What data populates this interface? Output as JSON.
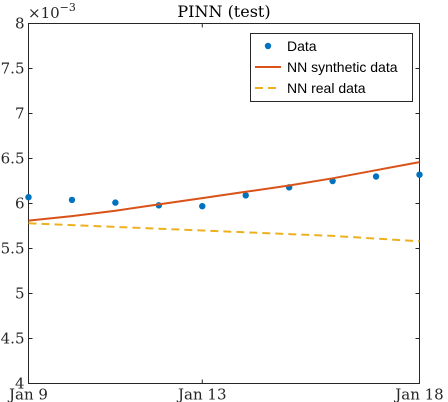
{
  "chart_data": {
    "type": "line",
    "title": "PINN (test)",
    "xlabel": "",
    "ylabel": "",
    "y_exponent_label": "×10",
    "y_exponent_power": "−3",
    "y_scale_factor": 0.001,
    "xlim": [
      0,
      9
    ],
    "ylim": [
      4.0,
      8.0
    ],
    "x_ticks": [
      0,
      4,
      9
    ],
    "x_tick_labels": [
      "Jan 9",
      "Jan 13",
      "Jan 18"
    ],
    "y_ticks": [
      4.0,
      4.5,
      5.0,
      5.5,
      6.0,
      6.5,
      7.0,
      7.5,
      8.0
    ],
    "y_tick_labels": [
      "4",
      "4.5",
      "5",
      "5.5",
      "6",
      "6.5",
      "7",
      "7.5",
      "8"
    ],
    "grid": false,
    "legend_position": "top-right",
    "series": [
      {
        "name": "Data",
        "style": "markers",
        "color": "#0072BD",
        "x": [
          0,
          1,
          2,
          3,
          4,
          5,
          6,
          7,
          8,
          9
        ],
        "values": [
          6.07,
          6.04,
          6.01,
          5.98,
          5.97,
          6.09,
          6.18,
          6.25,
          6.3,
          6.32
        ]
      },
      {
        "name": "NN synthetic data",
        "style": "solid",
        "color": "#D95319",
        "x": [
          0,
          1,
          2,
          3,
          4,
          5,
          6,
          7,
          8,
          9
        ],
        "values": [
          5.81,
          5.86,
          5.92,
          5.99,
          6.06,
          6.13,
          6.2,
          6.28,
          6.37,
          6.46
        ]
      },
      {
        "name": "NN real data",
        "style": "dashed",
        "color": "#EDB120",
        "x": [
          0,
          1,
          2,
          3,
          4,
          5,
          6,
          7,
          8,
          9
        ],
        "values": [
          5.78,
          5.76,
          5.74,
          5.72,
          5.7,
          5.68,
          5.66,
          5.64,
          5.61,
          5.58
        ]
      }
    ]
  }
}
